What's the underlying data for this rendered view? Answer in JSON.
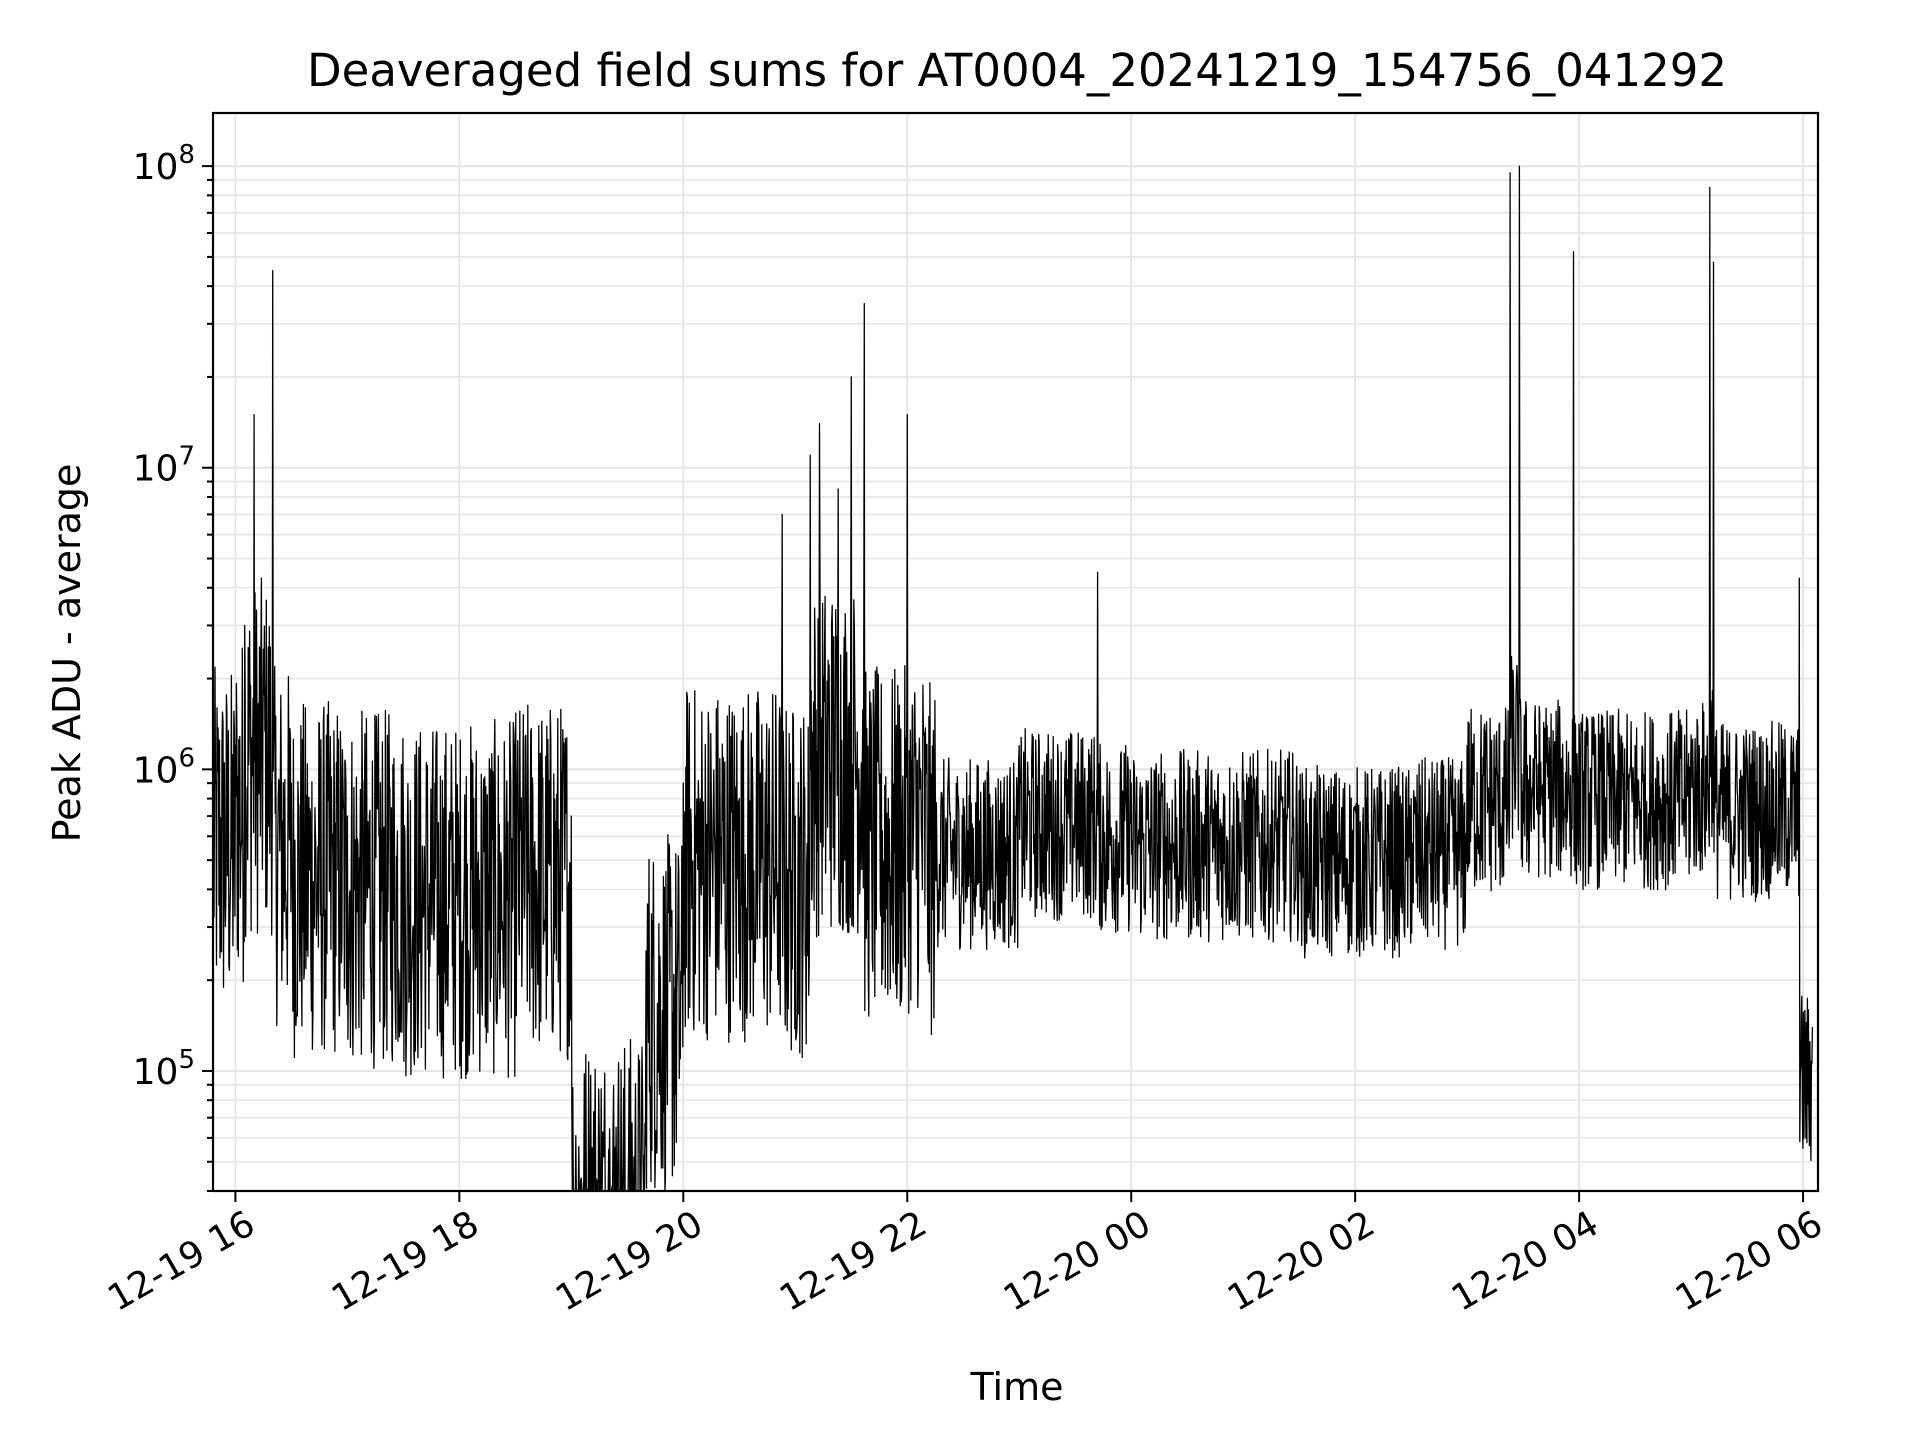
{
  "chart_data": {
    "type": "line",
    "title": "Deaveraged field sums for AT0004_20241219_154756_041292",
    "xlabel": "Time",
    "ylabel": "Peak ADU - average",
    "y_scale": "log",
    "ylim": [
      40000,
      150000000
    ],
    "xlim": [
      "2024-12-19 15:48",
      "2024-12-20 06:08"
    ],
    "grid": true,
    "line_color": "#000000",
    "x_ticks": [
      "2024-12-19 16:00",
      "2024-12-19 18:00",
      "2024-12-19 20:00",
      "2024-12-19 22:00",
      "2024-12-20 00:00",
      "2024-12-20 02:00",
      "2024-12-20 04:00",
      "2024-12-20 06:00"
    ],
    "x_tick_labels": [
      "12-19 16",
      "12-19 18",
      "12-19 20",
      "12-19 22",
      "12-20 00",
      "12-20 02",
      "12-20 04",
      "12-20 06"
    ],
    "y_ticks": [
      100000,
      1000000,
      10000000,
      100000000
    ],
    "y_tick_labels": [
      {
        "base": "10",
        "exp": "5"
      },
      {
        "base": "10",
        "exp": "6"
      },
      {
        "base": "10",
        "exp": "7"
      },
      {
        "base": "10",
        "exp": "8"
      }
    ],
    "series": [
      {
        "x": [
          "2024-12-19 15:48",
          "2024-12-19 16:00",
          "2024-12-19 16:05",
          "2024-12-19 16:10",
          "2024-12-19 16:15",
          "2024-12-19 16:20",
          "2024-12-19 16:30",
          "2024-12-19 17:00",
          "2024-12-19 17:30",
          "2024-12-19 18:00",
          "2024-12-19 18:30",
          "2024-12-19 19:00",
          "2024-12-19 19:20",
          "2024-12-19 19:40",
          "2024-12-19 20:00",
          "2024-12-19 20:30",
          "2024-12-19 20:53",
          "2024-12-19 21:00",
          "2024-12-19 21:08",
          "2024-12-19 21:13",
          "2024-12-19 21:23",
          "2024-12-19 21:30",
          "2024-12-19 21:37",
          "2024-12-19 21:45",
          "2024-12-19 22:00",
          "2024-12-19 22:10",
          "2024-12-19 22:30",
          "2024-12-19 23:00",
          "2024-12-19 23:30",
          "2024-12-19 23:42",
          "2024-12-20 00:00",
          "2024-12-20 00:30",
          "2024-12-20 01:00",
          "2024-12-20 01:30",
          "2024-12-20 02:00",
          "2024-12-20 02:30",
          "2024-12-20 03:00",
          "2024-12-20 03:23",
          "2024-12-20 03:28",
          "2024-12-20 03:37",
          "2024-12-20 03:57",
          "2024-12-20 04:30",
          "2024-12-20 05:00",
          "2024-12-20 05:10",
          "2024-12-20 05:12",
          "2024-12-20 05:30",
          "2024-12-20 05:58",
          "2024-12-20 06:05"
        ],
        "y": [
          900000,
          1200000,
          3000000,
          15000000,
          2500000,
          45000000,
          900000,
          700000,
          650000,
          600000,
          800000,
          700000,
          55000,
          250000,
          900000,
          800000,
          7000000,
          700000,
          11000000,
          14000000,
          8500000,
          20000000,
          35000000,
          900000,
          15000000,
          1000000,
          800000,
          1200000,
          1000000,
          4500000,
          900000,
          850000,
          850000,
          850000,
          750000,
          800000,
          1200000,
          95000000,
          100000000,
          1300000,
          52000000,
          1200000,
          1300000,
          85000000,
          48000000,
          1100000,
          4300000,
          140000
        ]
      }
    ]
  }
}
